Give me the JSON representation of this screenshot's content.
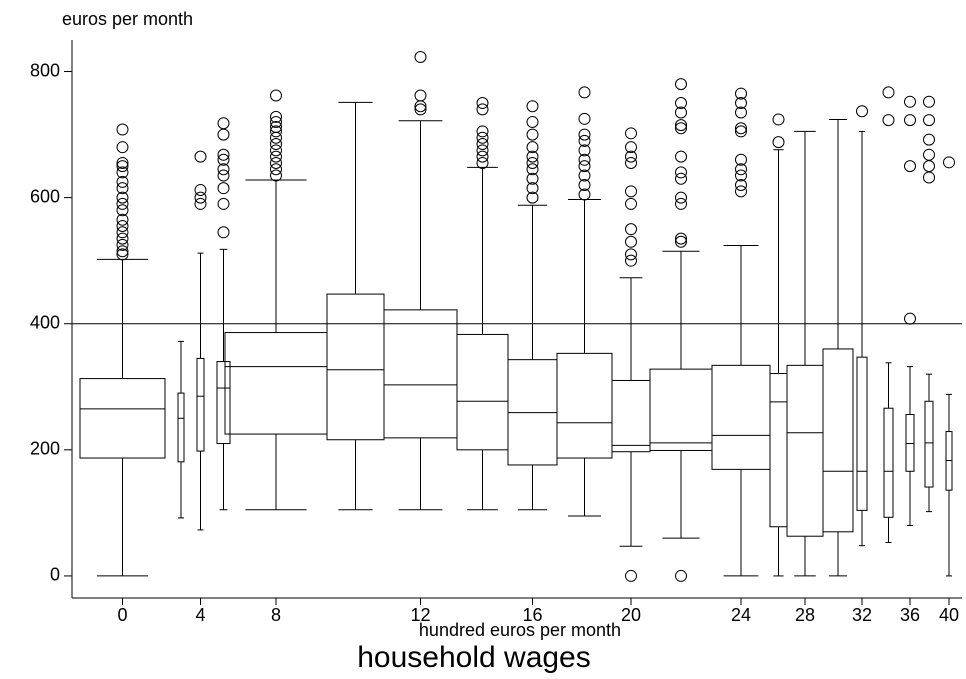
{
  "chart_data": {
    "type": "box",
    "y_axis_title": "euros per month",
    "x_axis_title": "hundred euros per month",
    "title": "household wages",
    "categories": [
      "0",
      null,
      "4",
      null,
      "8",
      null,
      "12",
      null,
      "16",
      null,
      "20",
      null,
      "24",
      null,
      "28",
      null,
      "32",
      null,
      "36",
      null,
      "40"
    ],
    "ylim": [
      -35,
      850
    ],
    "yticks": [
      0,
      200,
      400,
      600,
      800
    ],
    "reference_line": 400,
    "boxes": [
      {
        "low": 0,
        "q1": 187,
        "median": 265,
        "q3": 313,
        "high": 502,
        "outliers": [
          510,
          515,
          525,
          535,
          545,
          555,
          565,
          580,
          590,
          600,
          615,
          625,
          640,
          650,
          655,
          680,
          708
        ]
      },
      {
        "low": 92,
        "q1": 181,
        "median": 250,
        "q3": 290,
        "high": 372,
        "outliers": []
      },
      {
        "low": 73,
        "q1": 198,
        "median": 285,
        "q3": 345,
        "high": 512,
        "outliers": [
          590,
          600,
          612,
          665
        ]
      },
      {
        "low": 105,
        "q1": 210,
        "median": 298,
        "q3": 340,
        "high": 518,
        "outliers": [
          545,
          590,
          615,
          635,
          645,
          660,
          668,
          700,
          718
        ]
      },
      {
        "low": 105,
        "q1": 225,
        "median": 332,
        "q3": 386,
        "high": 628,
        "outliers": [
          635,
          645,
          655,
          665,
          675,
          685,
          695,
          705,
          712,
          720,
          728,
          762
        ]
      },
      {
        "low": 105,
        "q1": 216,
        "median": 327,
        "q3": 447,
        "high": 751,
        "outliers": []
      },
      {
        "low": 105,
        "q1": 219,
        "median": 303,
        "q3": 422,
        "high": 722,
        "outliers": [
          740,
          745,
          762,
          823
        ]
      },
      {
        "low": 105,
        "q1": 200,
        "median": 277,
        "q3": 383,
        "high": 648,
        "outliers": [
          655,
          665,
          675,
          685,
          695,
          705,
          740,
          750
        ]
      },
      {
        "low": 105,
        "q1": 176,
        "median": 259,
        "q3": 343,
        "high": 588,
        "outliers": [
          600,
          615,
          630,
          645,
          655,
          665,
          680,
          700,
          720,
          745
        ]
      },
      {
        "low": 95,
        "q1": 187,
        "median": 243,
        "q3": 353,
        "high": 597,
        "outliers": [
          605,
          620,
          635,
          650,
          660,
          675,
          690,
          700,
          725,
          767
        ]
      },
      {
        "low": 47,
        "q1": 197,
        "median": 207,
        "q3": 310,
        "high": 473,
        "outliers": [
          0,
          500,
          510,
          530,
          550,
          590,
          610,
          655,
          665,
          680,
          702
        ]
      },
      {
        "low": 60,
        "q1": 199,
        "median": 211,
        "q3": 328,
        "high": 515,
        "outliers": [
          0,
          530,
          535,
          590,
          600,
          630,
          640,
          665,
          710,
          715,
          735,
          750,
          780
        ]
      },
      {
        "low": 0,
        "q1": 169,
        "median": 223,
        "q3": 334,
        "high": 524,
        "outliers": [
          610,
          620,
          635,
          645,
          660,
          705,
          710,
          735,
          750,
          765
        ]
      },
      {
        "low": 0,
        "q1": 78,
        "median": 276,
        "q3": 321,
        "high": 676,
        "outliers": [
          688,
          724
        ]
      },
      {
        "low": 0,
        "q1": 63,
        "median": 227,
        "q3": 334,
        "high": 705,
        "outliers": []
      },
      {
        "low": 0,
        "q1": 70,
        "median": 166,
        "q3": 360,
        "high": 724,
        "outliers": []
      },
      {
        "low": 48,
        "q1": 104,
        "median": 166,
        "q3": 347,
        "high": 705,
        "outliers": [
          737
        ]
      },
      {
        "low": 53,
        "q1": 93,
        "median": 166,
        "q3": 266,
        "high": 338,
        "outliers": [
          723,
          767
        ]
      },
      {
        "low": 80,
        "q1": 166,
        "median": 210,
        "q3": 256,
        "high": 332,
        "outliers": [
          408,
          650,
          723,
          752
        ]
      },
      {
        "low": 102,
        "q1": 141,
        "median": 211,
        "q3": 277,
        "high": 320,
        "outliers": [
          632,
          650,
          668,
          692,
          723,
          752
        ]
      },
      {
        "low": 0,
        "q1": 136,
        "median": 183,
        "q3": 229,
        "high": 288,
        "outliers": [
          656
        ]
      }
    ]
  }
}
